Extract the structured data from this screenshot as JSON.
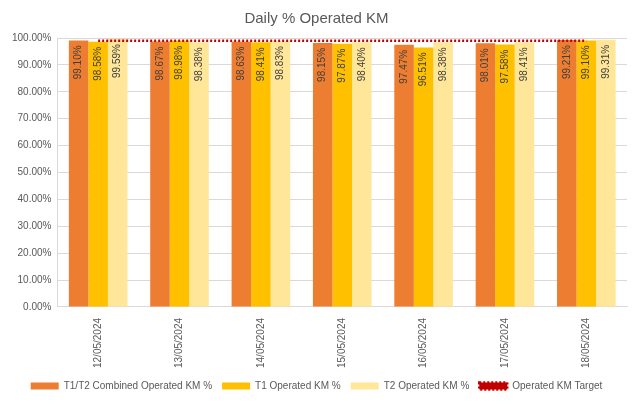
{
  "chart_data": {
    "type": "bar",
    "title": "Daily % Operated KM",
    "categories": [
      "12/05/2024",
      "13/05/2024",
      "14/05/2024",
      "15/05/2024",
      "16/05/2024",
      "17/05/2024",
      "18/05/2024"
    ],
    "series": [
      {
        "name": "T1/T2 Combined Operated KM %",
        "color": "#ED7D31",
        "values": [
          99.1,
          98.67,
          98.63,
          98.15,
          97.47,
          98.01,
          99.21
        ],
        "value_labels": [
          "99.10%",
          "98.67%",
          "98.63%",
          "98.15%",
          "97.47%",
          "98.01%",
          "99.21%"
        ]
      },
      {
        "name": "T1 Operated KM %",
        "color": "#FFC000",
        "values": [
          98.58,
          98.98,
          98.41,
          97.87,
          96.51,
          97.58,
          99.1
        ],
        "value_labels": [
          "98.58%",
          "98.98%",
          "98.41%",
          "97.87%",
          "96.51%",
          "97.58%",
          "99.10%"
        ]
      },
      {
        "name": "T2 Operated KM %",
        "color": "#FFE699",
        "values": [
          99.59,
          98.38,
          98.83,
          98.4,
          98.38,
          98.41,
          99.31
        ],
        "value_labels": [
          "99.59%",
          "98.38%",
          "98.83%",
          "98.40%",
          "98.38%",
          "98.41%",
          "99.31%"
        ]
      },
      {
        "name": "Operated KM Target",
        "type": "line",
        "color": "#C00000",
        "line_style": "dotted",
        "values": [
          99,
          99,
          99,
          99,
          99,
          99,
          99
        ]
      }
    ],
    "ylim": [
      0,
      100
    ],
    "yticks": [
      {
        "value": 0,
        "label": "0.00%"
      },
      {
        "value": 10,
        "label": "10.00%"
      },
      {
        "value": 20,
        "label": "20.00%"
      },
      {
        "value": 30,
        "label": "30.00%"
      },
      {
        "value": 40,
        "label": "40.00%"
      },
      {
        "value": 50,
        "label": "50.00%"
      },
      {
        "value": 60,
        "label": "60.00%"
      },
      {
        "value": 70,
        "label": "70.00%"
      },
      {
        "value": 80,
        "label": "80.00%"
      },
      {
        "value": 90,
        "label": "90.00%"
      },
      {
        "value": 100,
        "label": "100.00%"
      }
    ],
    "grid": true,
    "legend": "bottom",
    "data_labels": true
  }
}
